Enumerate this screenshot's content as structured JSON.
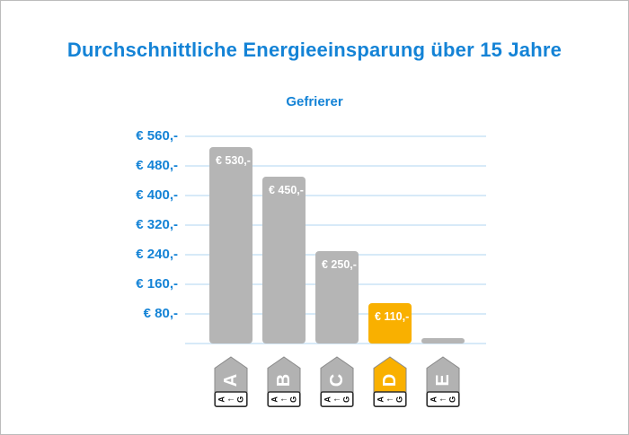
{
  "page": {
    "background": "#ffffff",
    "frame_border": "#bcbcbc"
  },
  "chart_data": {
    "type": "bar",
    "title": "Durchschnittliche Energieeinsparung über 15 Jahre",
    "subtitle": "Gefrierer",
    "categories": [
      "A",
      "B",
      "C",
      "D",
      "E"
    ],
    "values": [
      530,
      450,
      250,
      110,
      15
    ],
    "bar_value_labels": [
      "€ 530,-",
      "€ 450,-",
      "€ 250,-",
      "€ 110,-",
      ""
    ],
    "highlight_index": 3,
    "highlighted_category": "D",
    "y_ticks": [
      560,
      480,
      400,
      320,
      240,
      160,
      80
    ],
    "y_tick_labels": [
      "€ 560,-",
      "€ 480,-",
      "€ 400,-",
      "€ 320,-",
      "€ 240,-",
      "€ 160,-",
      "€ 80,-"
    ],
    "ylim": [
      0,
      580
    ],
    "grid": "horizontal",
    "currency": "EUR",
    "x_axis_style": "EU energy efficiency class tags",
    "tag_footer": {
      "best": "A",
      "arrow": "←",
      "worst": "G"
    }
  },
  "colors": {
    "title_blue": "#1483d6",
    "axis_label_blue": "#1483d6",
    "gridline_blue": "#d7eaf8",
    "bar_gray": "#b5b5b5",
    "bar_highlight_orange": "#f9b000",
    "bar_value_text": "#ffffff",
    "tag_gray": "#b2b2b2",
    "tag_orange": "#f9b000",
    "tag_outline": "#8a8a8a",
    "tag_footer_border": "#2e2e2e",
    "tag_letter_text": "#ffffff",
    "tag_footer_text": "#111111"
  }
}
